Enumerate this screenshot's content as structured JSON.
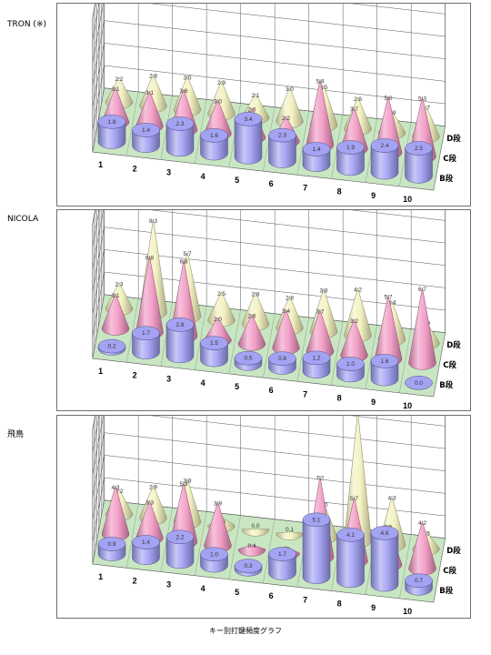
{
  "page": {
    "caption": "キー別打鍵頻度グラフ"
  },
  "colors": {
    "B": "#9a99f2",
    "C": "#f08fbe",
    "D": "#f2f0b8",
    "grid": "#555555",
    "floor": "#c9e6c3"
  },
  "chart_data": [
    {
      "type": "bar",
      "title": "TRON (※)",
      "categories": [
        "1",
        "2",
        "3",
        "4",
        "5",
        "6",
        "7",
        "8",
        "9",
        "10"
      ],
      "row_labels": [
        "D段",
        "C段",
        "B段"
      ],
      "series": [
        {
          "name": "B段",
          "shape": "cylinder",
          "values": [
            1.8,
            1.4,
            2.3,
            1.6,
            3.4,
            2.3,
            1.4,
            1.9,
            2.4,
            2.5
          ]
        },
        {
          "name": "C段",
          "shape": "cone",
          "values": [
            3.1,
            3.1,
            3.6,
            3.0,
            2.6,
            2.2,
            5.8,
            3.7,
            5.0,
            5.3
          ]
        },
        {
          "name": "D段",
          "shape": "cone",
          "values": [
            2.2,
            2.8,
            3.0,
            2.9,
            2.1,
            3.0,
            3.5,
            2.8,
            1.9,
            2.7
          ]
        }
      ]
    },
    {
      "type": "bar",
      "title": "NICOLA",
      "categories": [
        "1",
        "2",
        "3",
        "4",
        "5",
        "6",
        "7",
        "8",
        "9",
        "10"
      ],
      "row_labels": [
        "D段",
        "C段",
        "B段"
      ],
      "series": [
        {
          "name": "B段",
          "shape": "cylinder",
          "values": [
            0.2,
            1.7,
            2.8,
            1.5,
            0.5,
            0.8,
            1.2,
            1.0,
            1.6,
            0.0
          ]
        },
        {
          "name": "C段",
          "shape": "cone",
          "values": [
            3.1,
            6.8,
            6.8,
            2.0,
            2.6,
            3.4,
            3.7,
            3.2,
            5.7,
            6.7
          ]
        },
        {
          "name": "D段",
          "shape": "cone",
          "values": [
            2.3,
            8.3,
            5.7,
            2.5,
            2.8,
            2.8,
            3.8,
            4.2,
            3.4,
            1.9
          ]
        }
      ]
    },
    {
      "type": "bar",
      "title": "飛鳥",
      "categories": [
        "1",
        "2",
        "3",
        "4",
        "5",
        "6",
        "7",
        "8",
        "9",
        "10"
      ],
      "row_labels": [
        "D段",
        "C段",
        "B段"
      ],
      "series": [
        {
          "name": "B段",
          "shape": "cylinder",
          "values": [
            0.9,
            1.4,
            2.2,
            1.0,
            0.3,
            1.7,
            5.1,
            4.1,
            4.6,
            0.7
          ]
        },
        {
          "name": "C段",
          "shape": "cone",
          "values": [
            4.3,
            3.3,
            5.3,
            3.9,
            0.4,
            0.6,
            7.2,
            5.7,
            3.5,
            4.2
          ]
        },
        {
          "name": "D段",
          "shape": "cone",
          "values": [
            2.2,
            2.9,
            3.8,
            0.8,
            0.0,
            0.1,
            3.0,
            11.5,
            4.3,
            1.5
          ]
        }
      ]
    }
  ]
}
